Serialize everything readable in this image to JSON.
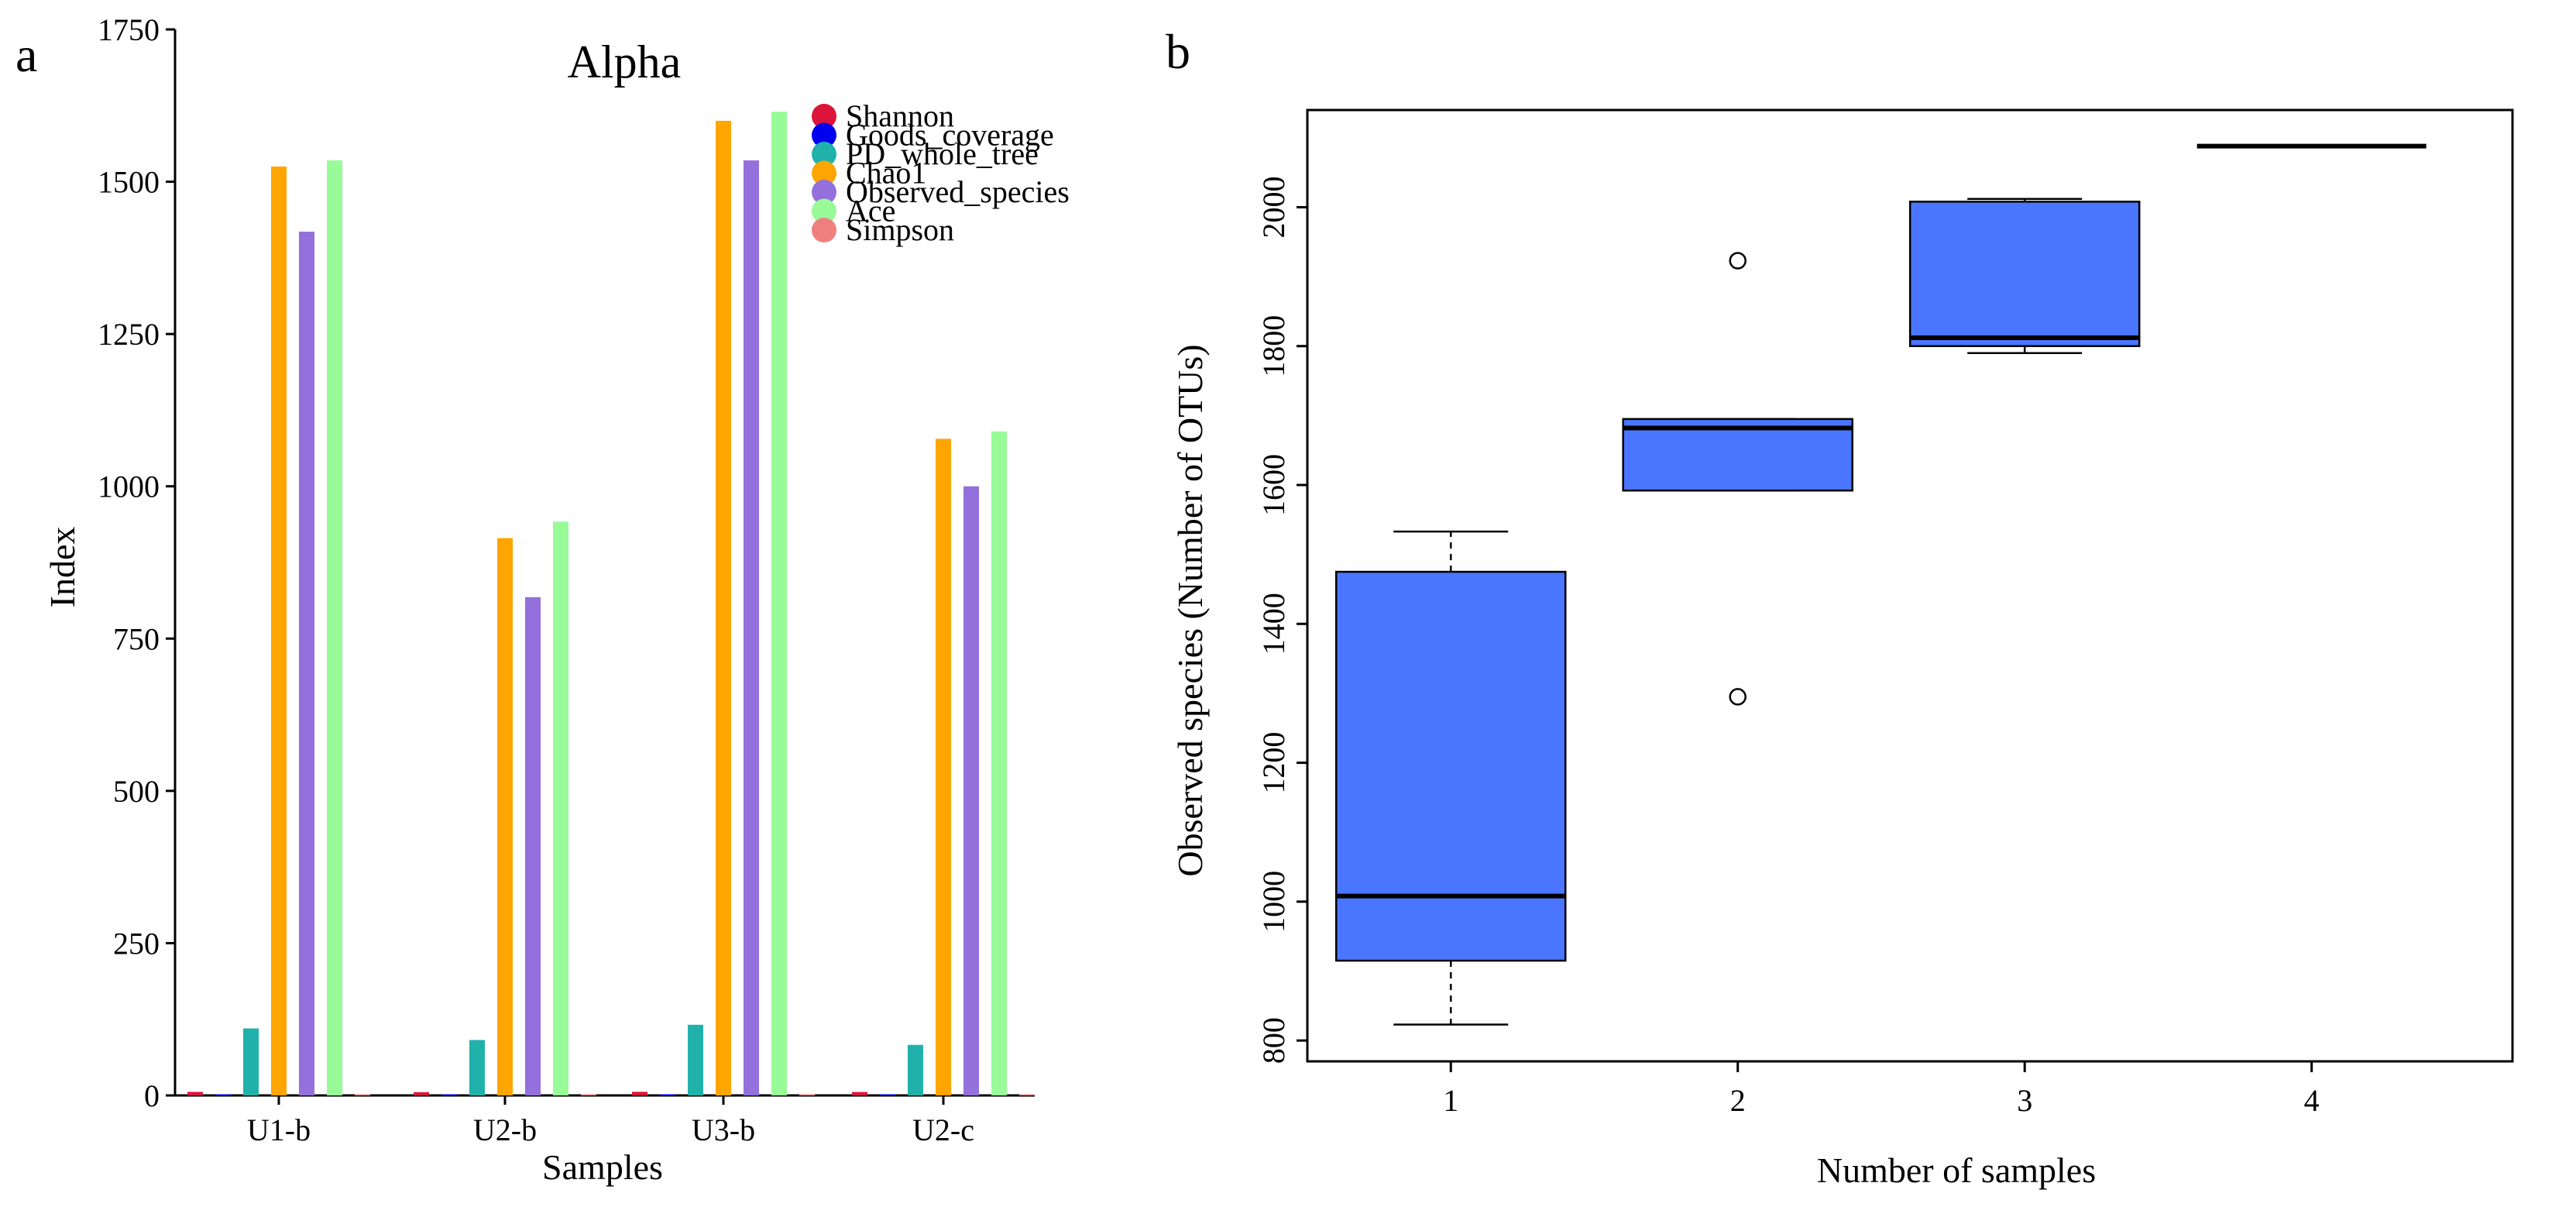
{
  "chart_data": [
    {
      "panel": "a",
      "type": "bar",
      "title": "Alpha",
      "xlabel": "Samples",
      "ylabel": "Index",
      "ylim": [
        0,
        1750
      ],
      "yticks": [
        "0",
        "250",
        "500",
        "750",
        "1000",
        "1250",
        "1500",
        "1750"
      ],
      "categories": [
        "U1-b",
        "U2-b",
        "U3-b",
        "U2-c"
      ],
      "legend_position": "top-right",
      "series": [
        {
          "name": "Shannon",
          "color": "#dc143c",
          "values": [
            5.8,
            5.4,
            5.9,
            5.6
          ]
        },
        {
          "name": "Goods_coverage",
          "color": "#0000ee",
          "values": [
            0.99,
            0.99,
            0.99,
            0.99
          ]
        },
        {
          "name": "PD_whole_tree",
          "color": "#20b2aa",
          "values": [
            110,
            91,
            116,
            83
          ]
        },
        {
          "name": "Chao1",
          "color": "#ffa500",
          "values": [
            1525,
            915,
            1600,
            1078
          ]
        },
        {
          "name": "Observed_species",
          "color": "#9370db",
          "values": [
            1418,
            818,
            1535,
            1000
          ]
        },
        {
          "name": "Ace",
          "color": "#98fb98",
          "values": [
            1535,
            942,
            1615,
            1090
          ]
        },
        {
          "name": "Simpson",
          "color": "#f08080",
          "values": [
            0.97,
            0.95,
            0.97,
            0.96
          ]
        }
      ]
    },
    {
      "panel": "b",
      "type": "box",
      "xlabel": "Number of samples",
      "ylabel": "Observed species (Number of OTUs)",
      "xlim": [
        0.5,
        4.7
      ],
      "ylim": [
        770,
        2140
      ],
      "yticks": [
        "800",
        "1000",
        "1200",
        "1400",
        "1600",
        "1800",
        "2000"
      ],
      "xticks": [
        "1",
        "2",
        "3",
        "4"
      ],
      "box_color": "#4a76ff",
      "boxes": [
        {
          "x": 1,
          "label": "1",
          "whisker_low": 823,
          "q1": 915,
          "median": 1008,
          "q3": 1475,
          "whisker_high": 1533,
          "outliers": []
        },
        {
          "x": 2,
          "label": "2",
          "whisker_low": 1592,
          "q1": 1592,
          "median": 1682,
          "q3": 1695,
          "whisker_high": 1695,
          "outliers": [
            1923,
            1295
          ]
        },
        {
          "x": 3,
          "label": "3",
          "whisker_low": 1790,
          "q1": 1800,
          "median": 1812,
          "q3": 2008,
          "whisker_high": 2012,
          "outliers": []
        },
        {
          "x": 4,
          "label": "4",
          "whisker_low": 2088,
          "q1": 2088,
          "median": 2088,
          "q3": 2088,
          "whisker_high": 2088,
          "outliers": []
        }
      ]
    }
  ]
}
